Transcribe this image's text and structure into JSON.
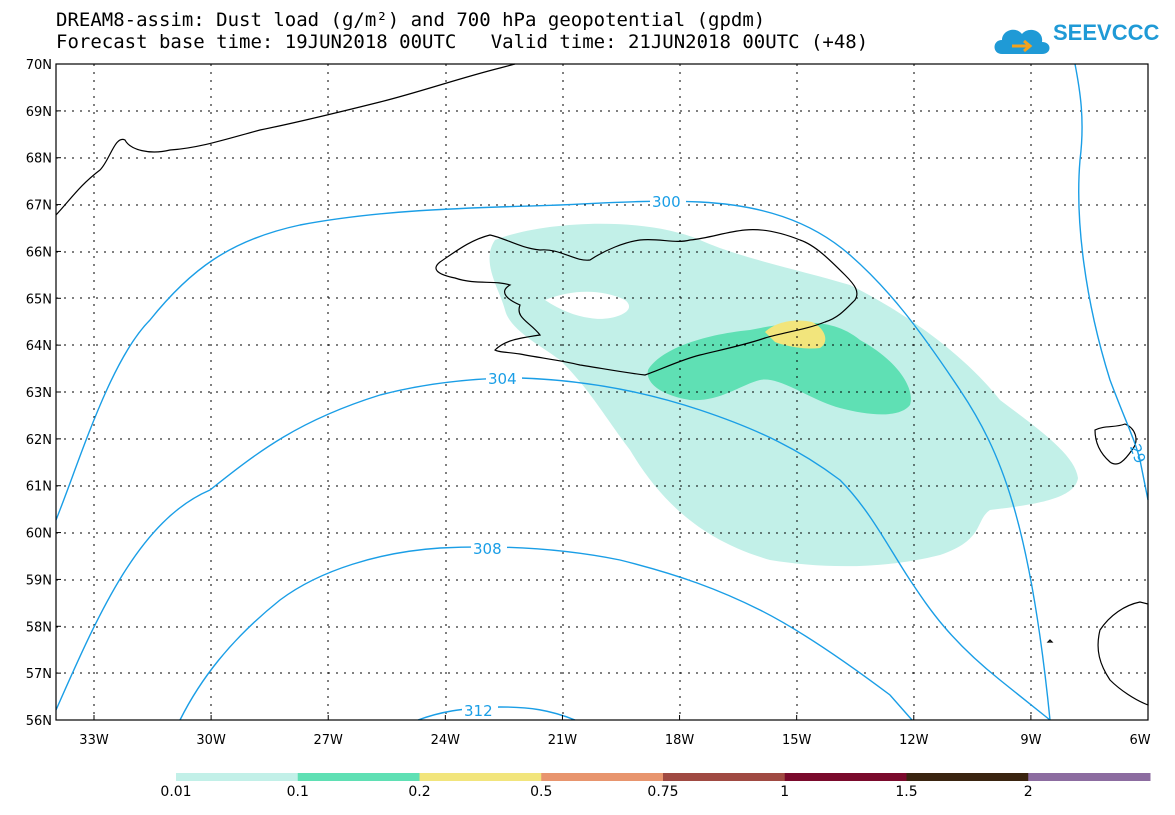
{
  "title": {
    "line1": "DREAM8-assim: Dust load (g/m²) and 700 hPa geopotential (gpdm)",
    "line2_left": "Forecast base time: 19JUN2018 00UTC",
    "line2_right": "Valid time: 21JUN2018 00UTC (+48)"
  },
  "logo": {
    "text": "SEEVCCC",
    "icon": "cloud-arrow-icon"
  },
  "map": {
    "lat_ticks": [
      "70N",
      "69N",
      "68N",
      "67N",
      "66N",
      "65N",
      "64N",
      "63N",
      "62N",
      "61N",
      "60N",
      "59N",
      "58N",
      "57N",
      "56N"
    ],
    "lon_ticks": [
      "33W",
      "30W",
      "27W",
      "24W",
      "21W",
      "18W",
      "15W",
      "12W",
      "9W",
      "6W"
    ],
    "contour_labels": [
      "300",
      "304",
      "308",
      "312",
      "29"
    ]
  },
  "colorbar": {
    "colors": [
      "#c2f0e8",
      "#5fe0b4",
      "#f2e57c",
      "#e8956e",
      "#a04a42",
      "#7a0a2c",
      "#3a2410",
      "#8c6ca0"
    ],
    "labels": [
      "0.01",
      "0.1",
      "0.2",
      "0.5",
      "0.75",
      "1",
      "1.5",
      "2"
    ]
  },
  "colors": {
    "contour": "#1a9ee6",
    "plume_light": "#c2f0e8",
    "plume_mid": "#5fe0b4",
    "plume_high": "#f2e57c"
  }
}
